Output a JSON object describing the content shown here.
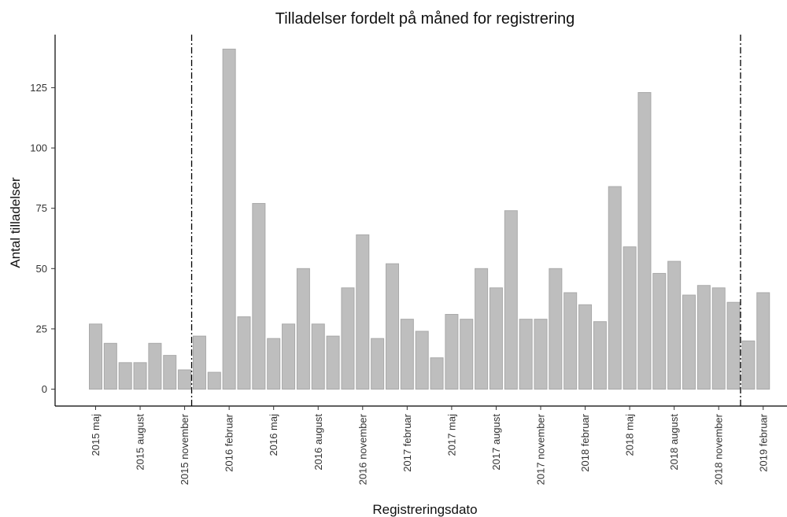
{
  "chart_data": {
    "type": "bar",
    "title": "Tilladelser fordelt på måned for registrering",
    "xlabel": "Registreringsdato",
    "ylabel": "Antal tilladelser",
    "ylim": [
      -7,
      147
    ],
    "y_ticks": [
      0,
      25,
      50,
      75,
      100,
      125
    ],
    "categories": [
      "2015-05",
      "2015-06",
      "2015-07",
      "2015-08",
      "2015-09",
      "2015-10",
      "2015-11",
      "2015-12",
      "2016-01",
      "2016-02",
      "2016-03",
      "2016-04",
      "2016-05",
      "2016-06",
      "2016-07",
      "2016-08",
      "2016-09",
      "2016-10",
      "2016-11",
      "2016-12",
      "2017-01",
      "2017-02",
      "2017-03",
      "2017-04",
      "2017-05",
      "2017-06",
      "2017-07",
      "2017-08",
      "2017-09",
      "2017-10",
      "2017-11",
      "2017-12",
      "2018-01",
      "2018-02",
      "2018-03",
      "2018-04",
      "2018-05",
      "2018-06",
      "2018-07",
      "2018-08",
      "2018-09",
      "2018-10",
      "2018-11",
      "2018-12",
      "2019-01",
      "2019-02"
    ],
    "values": [
      27,
      19,
      11,
      11,
      19,
      14,
      8,
      22,
      7,
      141,
      30,
      77,
      21,
      27,
      50,
      27,
      22,
      42,
      64,
      21,
      52,
      29,
      24,
      13,
      31,
      29,
      50,
      42,
      74,
      29,
      29,
      50,
      40,
      35,
      28,
      84,
      59,
      123,
      48,
      53,
      39,
      43,
      42,
      36,
      20,
      40
    ],
    "x_tick_labels": [
      {
        "at": "2015-05",
        "label": "2015 maj"
      },
      {
        "at": "2015-08",
        "label": "2015 august"
      },
      {
        "at": "2015-11",
        "label": "2015 november"
      },
      {
        "at": "2016-02",
        "label": "2016 februar"
      },
      {
        "at": "2016-05",
        "label": "2016 maj"
      },
      {
        "at": "2016-08",
        "label": "2016 august"
      },
      {
        "at": "2016-11",
        "label": "2016 november"
      },
      {
        "at": "2017-02",
        "label": "2017 februar"
      },
      {
        "at": "2017-05",
        "label": "2017 maj"
      },
      {
        "at": "2017-08",
        "label": "2017 august"
      },
      {
        "at": "2017-11",
        "label": "2017 november"
      },
      {
        "at": "2018-02",
        "label": "2018 februar"
      },
      {
        "at": "2018-05",
        "label": "2018 maj"
      },
      {
        "at": "2018-08",
        "label": "2018 august"
      },
      {
        "at": "2018-11",
        "label": "2018 november"
      },
      {
        "at": "2019-02",
        "label": "2019 februar"
      }
    ],
    "reference_lines": [
      {
        "at": "2015-12"
      },
      {
        "at": "2019-01"
      }
    ],
    "bar_color": "#bebebe",
    "grid": false
  }
}
